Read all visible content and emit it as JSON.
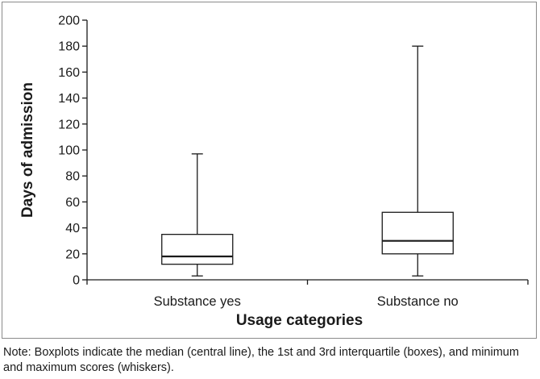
{
  "chart_data": {
    "type": "boxplot",
    "xlabel": "Usage categories",
    "ylabel": "Days of admission",
    "ylim": [
      0,
      200
    ],
    "yticks": [
      0,
      20,
      40,
      60,
      80,
      100,
      120,
      140,
      160,
      180,
      200
    ],
    "categories": [
      "Substance yes",
      "Substance no"
    ],
    "boxes": [
      {
        "category": "Substance yes",
        "min": 3,
        "q1": 12,
        "median": 18,
        "q3": 35,
        "max": 97
      },
      {
        "category": "Substance no",
        "min": 3,
        "q1": 20,
        "median": 30,
        "q3": 52,
        "max": 180
      }
    ],
    "grid": false,
    "colors": {
      "stroke": "#1a1a1a",
      "box_fill": "#ffffff"
    }
  },
  "note": "Note: Boxplots indicate the median (central line), the 1st and 3rd interquartile (boxes), and minimum and maximum scores (whiskers)."
}
